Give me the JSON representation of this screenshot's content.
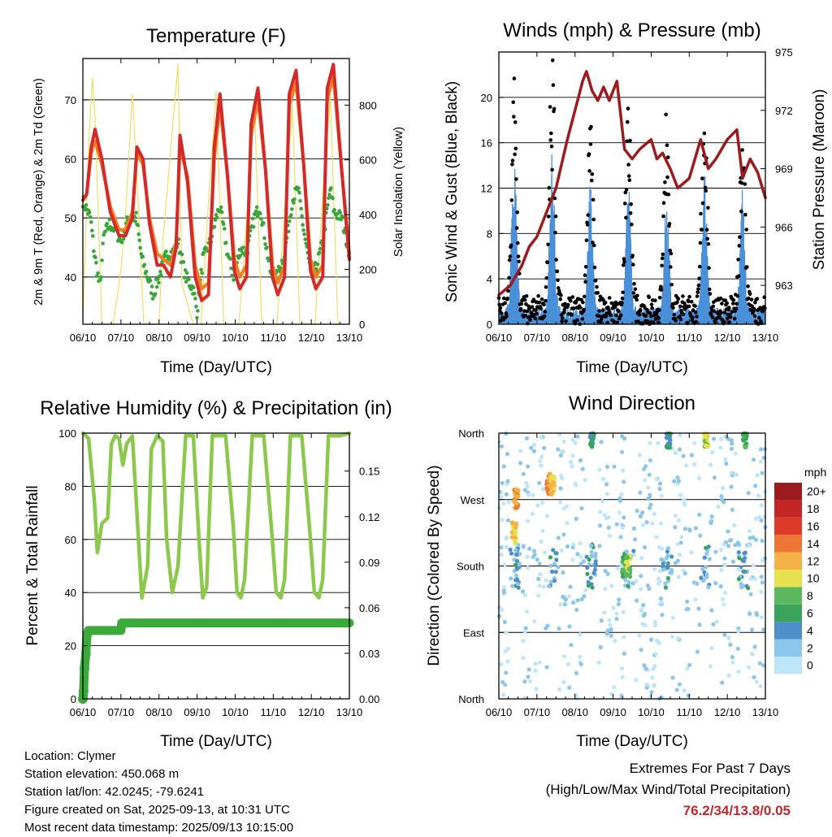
{
  "figure": {
    "x_tick_labels": [
      "06/10",
      "07/10",
      "08/10",
      "09/10",
      "10/10",
      "11/10",
      "12/10",
      "13/10"
    ],
    "x_axis_label": "Time (Day/UTC)"
  },
  "chart_data": [
    {
      "id": "temperature",
      "type": "line",
      "title": "Temperature (F)",
      "ylabel": "2m & 9m T (Red, Orange) & 2m Td (Green)",
      "y2label": "Solar Insolation (Yellow)",
      "xlabel": "Time (Day/UTC)",
      "ylim": [
        32,
        77
      ],
      "yticks": [
        40,
        50,
        60,
        70
      ],
      "y2lim": [
        0,
        970
      ],
      "y2ticks": [
        0,
        200,
        400,
        600,
        800
      ],
      "x_unit": "days since 06/10 00 UTC",
      "series": [
        {
          "color": "#d42a2a",
          "x": [
            0,
            0.1,
            0.22,
            0.32,
            0.5,
            0.72,
            0.95,
            1.12,
            1.3,
            1.42,
            1.58,
            1.75,
            1.95,
            2.12,
            2.3,
            2.45,
            2.55,
            2.75,
            2.95,
            3.12,
            3.3,
            3.45,
            3.6,
            3.8,
            3.98,
            4.12,
            4.3,
            4.42,
            4.6,
            4.8,
            4.98,
            5.12,
            5.3,
            5.42,
            5.6,
            5.8,
            5.98,
            6.12,
            6.3,
            6.42,
            6.58,
            6.8,
            7.0
          ],
          "values": [
            53,
            54,
            62,
            65,
            60,
            51,
            47,
            47,
            50,
            62,
            60,
            49,
            42,
            42,
            40,
            45,
            64,
            56,
            40,
            36,
            37,
            62,
            71,
            57,
            41,
            38,
            40,
            66,
            72,
            58,
            40,
            37,
            40,
            71,
            75,
            59,
            41,
            38,
            40,
            72,
            76,
            58,
            43
          ]
        },
        {
          "color": "#f07f22",
          "x": [
            0,
            0.1,
            0.22,
            0.32,
            0.5,
            0.72,
            0.95,
            1.12,
            1.3,
            1.42,
            1.58,
            1.75,
            1.95,
            2.12,
            2.3,
            2.45,
            2.55,
            2.75,
            2.95,
            3.12,
            3.3,
            3.45,
            3.6,
            3.8,
            3.98,
            4.12,
            4.3,
            4.42,
            4.6,
            4.8,
            4.98,
            5.12,
            5.3,
            5.42,
            5.6,
            5.8,
            5.98,
            6.12,
            6.3,
            6.42,
            6.58,
            6.8,
            7.0
          ],
          "values": [
            53,
            54,
            61,
            63,
            59,
            52,
            48,
            48,
            51,
            61,
            59,
            50,
            44,
            43,
            42,
            46,
            62,
            57,
            42,
            38,
            39,
            60,
            69,
            57,
            43,
            40,
            42,
            64,
            70,
            58,
            42,
            39,
            42,
            69,
            73,
            59,
            43,
            40,
            42,
            70,
            74,
            58,
            44
          ]
        },
        {
          "color": "#3aa63a",
          "x": [
            0,
            0.2,
            0.3,
            0.45,
            0.55,
            0.7,
            0.85,
            1.0,
            1.2,
            1.4,
            1.55,
            1.7,
            1.85,
            2.0,
            2.2,
            2.35,
            2.5,
            2.7,
            2.9,
            3.0,
            3.15,
            3.35,
            3.5,
            3.6,
            3.8,
            3.95,
            4.15,
            4.3,
            4.5,
            4.65,
            4.8,
            4.95,
            5.1,
            5.3,
            5.5,
            5.65,
            5.8,
            6.0,
            6.15,
            6.3,
            6.5,
            6.6,
            6.8,
            7.0
          ],
          "values": [
            53,
            50,
            44,
            38,
            47,
            49,
            48,
            46,
            50,
            50,
            43,
            40,
            37,
            40,
            44,
            44,
            46,
            40,
            38,
            34,
            43,
            46,
            50,
            52,
            44,
            40,
            45,
            44,
            50,
            52,
            46,
            40,
            40,
            44,
            53,
            55,
            48,
            40,
            42,
            46,
            55,
            51,
            50,
            44
          ]
        },
        {
          "color": "#f2dd64",
          "x": [
            0,
            0.15,
            0.25,
            0.32,
            0.5,
            0.8,
            1.0,
            1.1,
            1.3,
            1.4,
            1.6,
            2.0,
            2.1,
            2.5,
            2.6,
            2.9,
            3.1,
            3.3,
            3.5,
            3.7,
            4.1,
            4.3,
            4.5,
            4.7,
            5.1,
            5.3,
            5.5,
            5.7,
            6.1,
            6.3,
            6.5,
            6.7,
            7.0
          ],
          "values": [
            0,
            650,
            900,
            750,
            0,
            0,
            200,
            350,
            840,
            600,
            0,
            0,
            300,
            950,
            150,
            0,
            0,
            450,
            850,
            0,
            0,
            380,
            820,
            0,
            0,
            420,
            800,
            0,
            0,
            470,
            830,
            0,
            0
          ]
        }
      ]
    },
    {
      "id": "winds",
      "type": "scatter",
      "title": "Winds (mph) & Pressure (mb)",
      "ylabel": "Sonic Wind & Gust (Blue, Black)",
      "y2label": "Station Pressure (Maroon)",
      "xlabel": "Time (Day/UTC)",
      "ylim": [
        0,
        24
      ],
      "yticks": [
        0,
        4,
        8,
        12,
        16,
        20
      ],
      "y2lim": [
        961,
        975
      ],
      "y2ticks": [
        963,
        966,
        969,
        972,
        975
      ],
      "x_unit": "days since 06/10 00 UTC",
      "gust_peaks": {
        "x": [
          0.4,
          1.4,
          2.4,
          3.4,
          4.4,
          5.4,
          6.4
        ],
        "values": [
          21,
          22,
          19,
          18,
          17,
          18,
          18
        ]
      },
      "wind_peaks": {
        "x": [
          0.4,
          1.4,
          2.4,
          3.4,
          4.4,
          5.4,
          6.4
        ],
        "values": [
          14,
          13,
          11,
          11,
          10,
          11,
          10
        ]
      },
      "pressure": {
        "color": "#9b1b1e",
        "x": [
          0,
          0.3,
          0.6,
          0.8,
          1.0,
          1.2,
          1.5,
          1.8,
          2.0,
          2.2,
          2.3,
          2.45,
          2.6,
          2.75,
          2.9,
          3.1,
          3.3,
          3.5,
          3.7,
          4.0,
          4.15,
          4.3,
          4.5,
          4.7,
          5.0,
          5.3,
          5.5,
          5.7,
          6.0,
          6.25,
          6.4,
          6.6,
          6.8,
          7.0
        ],
        "values": [
          962.5,
          963,
          964,
          965,
          965.5,
          966.5,
          968,
          970.5,
          972,
          973.5,
          974,
          973,
          972.5,
          973.2,
          972.5,
          973.5,
          970,
          969.5,
          970,
          970.5,
          969.5,
          969.8,
          969,
          968,
          968.5,
          970.5,
          969,
          969.5,
          970.5,
          971,
          968.5,
          969.5,
          968.8,
          967.5
        ]
      }
    },
    {
      "id": "humidity",
      "type": "line",
      "title": "Relative Humidity (%) & Precipitation (in)",
      "ylabel": "Percent & Total Rainfall",
      "xlabel": "Time (Day/UTC)",
      "ylim": [
        0,
        100
      ],
      "yticks": [
        0,
        20,
        40,
        60,
        80,
        100
      ],
      "y2lim": [
        0,
        0.175
      ],
      "y2ticks": [
        "0.00",
        "0.03",
        "0.06",
        "0.09",
        "0.12",
        "0.15"
      ],
      "x_unit": "days since 06/10 00 UTC",
      "humidity": {
        "color": "#8cc84b",
        "x": [
          0,
          0.15,
          0.3,
          0.38,
          0.5,
          0.65,
          0.75,
          0.85,
          0.95,
          1.05,
          1.15,
          1.3,
          1.4,
          1.55,
          1.7,
          1.8,
          1.95,
          2.1,
          2.2,
          2.35,
          2.5,
          2.7,
          2.9,
          3.05,
          3.15,
          3.25,
          3.4,
          3.55,
          3.75,
          3.95,
          4.05,
          4.15,
          4.25,
          4.45,
          4.55,
          4.75,
          4.95,
          5.08,
          5.2,
          5.3,
          5.45,
          5.6,
          5.75,
          5.95,
          6.08,
          6.2,
          6.3,
          6.45,
          6.6,
          6.75,
          7.0
        ],
        "values": [
          100,
          98,
          75,
          55,
          66,
          68,
          96,
          99,
          98,
          88,
          96,
          99,
          75,
          38,
          50,
          94,
          99,
          97,
          60,
          40,
          50,
          99,
          99,
          60,
          38,
          42,
          99,
          99,
          99,
          65,
          40,
          38,
          45,
          99,
          99,
          99,
          65,
          40,
          38,
          45,
          99,
          99,
          99,
          65,
          40,
          38,
          45,
          99,
          99,
          99,
          100
        ]
      },
      "rain": {
        "color": "#3aaa3a",
        "x": [
          0,
          0.02,
          0.04,
          0.08,
          0.1,
          0.14,
          1.0,
          1.02,
          7.0
        ],
        "values": [
          0,
          0.005,
          0.02,
          0.03,
          0.04,
          0.045,
          0.045,
          0.05,
          0.05
        ]
      }
    },
    {
      "id": "wind_direction",
      "type": "scatter",
      "title": "Wind Direction",
      "ylabel": "Direction (Colored By Speed)",
      "xlabel": "Time (Day/UTC)",
      "y_categories": [
        "North",
        "East",
        "South",
        "West",
        "North"
      ],
      "legend_title": "mph",
      "legend_labels": [
        "0",
        "2",
        "4",
        "6",
        "8",
        "10",
        "12",
        "14",
        "16",
        "18",
        "20+"
      ],
      "legend_colors": [
        "#bfe6f8",
        "#8cc6ea",
        "#4d8fcb",
        "#3aa55a",
        "#5cb85c",
        "#e7e04f",
        "#f4b246",
        "#ef7534",
        "#de3a2a",
        "#c42626",
        "#9b1b1e"
      ],
      "legend_position": "right",
      "notable": {
        "x": [
          0.4,
          0.45,
          1.3,
          1.4,
          2.45,
          3.3,
          3.4,
          4.45,
          5.45,
          6.45
        ],
        "direction": [
          "SW",
          "W",
          "WNW",
          "WNW",
          "N",
          "S",
          "S",
          "N",
          "N",
          "N"
        ],
        "speed": [
          12,
          14,
          14,
          12,
          6,
          8,
          10,
          6,
          10,
          8
        ]
      }
    }
  ],
  "footer": {
    "location": "Location: Clymer",
    "elevation": "Station elevation: 450.068 m",
    "latlon": "Station lat/lon: 42.0245; -79.6241",
    "created": "Figure created on Sat, 2025-09-13, at 10:31 UTC",
    "recent": "Most recent data timestamp: 2025/09/13 10:15:00",
    "extremes_title": "Extremes For Past 7 Days",
    "extremes_legend": "(High/Low/Max Wind/Total Precipitation)",
    "extremes_values": "76.2/34/13.8/0.05"
  }
}
